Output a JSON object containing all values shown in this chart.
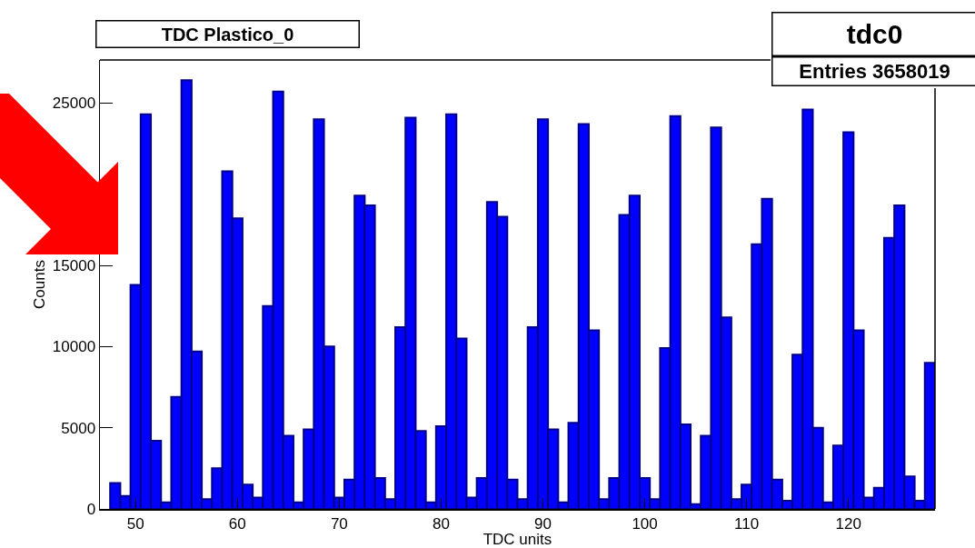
{
  "chart_data": {
    "type": "histogram",
    "title": "TDC Plastico_0",
    "xlabel": "TDC units",
    "ylabel": "Counts",
    "annotations": [
      "tdc0",
      "Entries 3658019"
    ],
    "bins": [
      46.5,
      47.5,
      48.5,
      49.5,
      50.5,
      51.5,
      52.5,
      53.5,
      54.5,
      55.5,
      56.5,
      57.5,
      58.5,
      59.5,
      60.5,
      61.5,
      62.5,
      63.5,
      64.5,
      65.5,
      66.5,
      67.5,
      68.5,
      69.5,
      70.5,
      71.5,
      72.5,
      73.5,
      74.5,
      75.5,
      76.5,
      77.5,
      78.5,
      79.5,
      80.5,
      81.5,
      82.5,
      83.5,
      84.5,
      85.5,
      86.5,
      87.5,
      88.5,
      89.5,
      90.5,
      91.5,
      92.5,
      93.5,
      94.5,
      95.5,
      96.5,
      97.5,
      98.5,
      99.5,
      100.5,
      101.5,
      102.5,
      103.5,
      104.5,
      105.5,
      106.5,
      107.5,
      108.5,
      109.5,
      110.5,
      111.5,
      112.5,
      113.5,
      114.5,
      115.5,
      116.5,
      117.5,
      118.5,
      119.5,
      120.5,
      121.5,
      122.5,
      123.5,
      124.5,
      125.5,
      126.5,
      127.5,
      128.5
    ],
    "values": [
      null,
      1600,
      800,
      13800,
      24300,
      4200,
      400,
      6900,
      26400,
      9700,
      600,
      2500,
      20800,
      17900,
      1500,
      700,
      12500,
      25700,
      4500,
      400,
      4900,
      24000,
      10000,
      700,
      1800,
      19300,
      18700,
      1900,
      600,
      11200,
      24100,
      4800,
      400,
      5100,
      24300,
      10500,
      700,
      1900,
      18900,
      18000,
      1800,
      600,
      11200,
      24000,
      4900,
      400,
      5300,
      23700,
      11000,
      600,
      1900,
      18100,
      19300,
      1900,
      600,
      9900,
      24200,
      5200,
      300,
      4500,
      23500,
      11800,
      600,
      1500,
      16300,
      19100,
      1800,
      500,
      9500,
      24600,
      5000,
      400,
      3900,
      23200,
      11000,
      700,
      1300,
      16700,
      18700,
      2000,
      500,
      9000
    ],
    "color": "#0000ff",
    "xlim": [
      46.5,
      128.5
    ],
    "xticks": [
      50,
      60,
      70,
      80,
      90,
      100,
      110,
      120
    ],
    "ylim": [
      0,
      27650
    ],
    "yticks": [
      0,
      5000,
      10000,
      15000,
      {
        "value": 20000,
        "label": null
      },
      25000
    ],
    "grid": false
  }
}
